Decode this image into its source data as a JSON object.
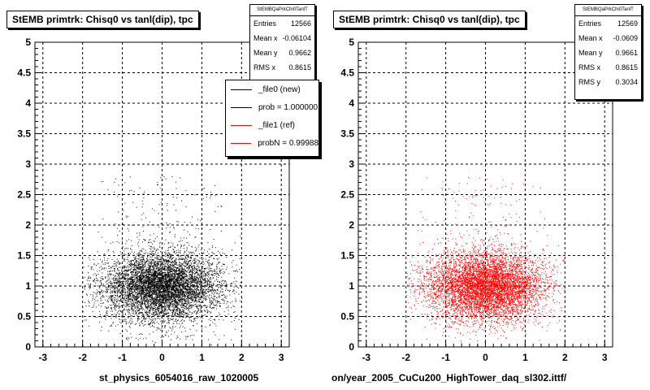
{
  "chart_data": [
    {
      "type": "scatter",
      "title": "StEMB primtrk: Chisq0 vs tanl(dip), tpc",
      "xlabel": "st_physics_6054016_raw_1020005",
      "ylabel": "",
      "xlim": [
        -3.2,
        3.2
      ],
      "ylim": [
        0,
        5
      ],
      "xticks": [
        "-3",
        "-2",
        "-1",
        "0",
        "1",
        "2",
        "3"
      ],
      "yticks": [
        "0",
        "0.5",
        "1",
        "1.5",
        "2",
        "2.5",
        "3",
        "3.5",
        "4",
        "4.5",
        "5"
      ],
      "grid": true,
      "series": [
        {
          "name": "_file0 (new)",
          "color": "#000000",
          "x_center": 0,
          "x_spread": [
            -2,
            2
          ],
          "y_center": 1.0,
          "y_core_range": [
            0.5,
            1.5
          ]
        }
      ],
      "stats": {
        "name": "StEMBQaPrkChi0TanlT",
        "rows": [
          {
            "label": "Entries",
            "value": "12566"
          },
          {
            "label": "Mean x",
            "value": "-0.06104"
          },
          {
            "label": "Mean y",
            "value": "0.9662"
          },
          {
            "label": "RMS x",
            "value": "0.8615"
          }
        ]
      },
      "legend": {
        "placement": "top-right",
        "entries": [
          {
            "label": "_file0 (new)",
            "color": "#000000"
          },
          {
            "label": "prob = 1.000000",
            "color": "#000000"
          },
          {
            "label": "_file1 (ref)",
            "color": "#ff0000"
          },
          {
            "label": "probN = 0.99988",
            "color": "#ff0000"
          }
        ]
      }
    },
    {
      "type": "scatter",
      "title": "StEMB primtrk: Chisq0 vs tanl(dip), tpc",
      "xlabel": "on/year_2005_CuCu200_HighTower_daq_sl302.ittf/",
      "ylabel": "",
      "xlim": [
        -3.2,
        3.2
      ],
      "ylim": [
        0,
        5
      ],
      "xticks": [
        "-3",
        "-2",
        "-1",
        "0",
        "1",
        "2",
        "3"
      ],
      "yticks": [
        "0",
        "0.5",
        "1",
        "1.5",
        "2",
        "2.5",
        "3",
        "3.5",
        "4",
        "4.5",
        "5"
      ],
      "grid": true,
      "series": [
        {
          "name": "_file1 (ref)",
          "color": "#ff0000",
          "x_center": 0,
          "x_spread": [
            -2,
            2
          ],
          "y_center": 1.0,
          "y_core_range": [
            0.5,
            1.5
          ]
        }
      ],
      "stats": {
        "name": "StEMBQaPrkChi0TanlT",
        "rows": [
          {
            "label": "Entries",
            "value": "12569"
          },
          {
            "label": "Mean x",
            "value": "-0.0609"
          },
          {
            "label": "Mean y",
            "value": "0.9661"
          },
          {
            "label": "RMS x",
            "value": "0.8615"
          },
          {
            "label": "RMS y",
            "value": "0.3034"
          }
        ]
      }
    }
  ]
}
